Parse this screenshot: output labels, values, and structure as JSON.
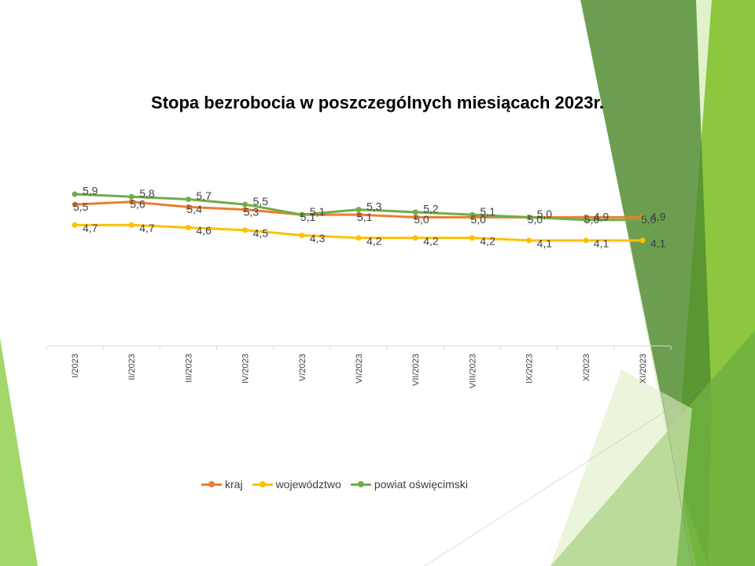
{
  "colors": {
    "kraj": "#ED7D31",
    "wojewodztwo": "#FFC000",
    "powiat": "#70AD47",
    "axis": "#D9D9D9",
    "label": "#404040"
  },
  "chart_data": {
    "type": "line",
    "title": "Stopa bezrobocia  w poszczególnych miesiącach 2023r.",
    "xlabel": "",
    "ylabel": "",
    "categories": [
      "I/2023",
      "II/2023",
      "III/2023",
      "IV/2023",
      "V/2023",
      "VI/2023",
      "VII/2023",
      "VIII/2023",
      "IX/2023",
      "X/2023",
      "XI/2023"
    ],
    "ylim": [
      0,
      7
    ],
    "grid": false,
    "legend_position": "bottom",
    "series": [
      {
        "name": "kraj",
        "color_key": "kraj",
        "values": [
          5.5,
          5.6,
          5.4,
          5.3,
          5.1,
          5.1,
          5.0,
          5.0,
          5.0,
          5.0,
          5.0
        ],
        "labels": [
          "5,5",
          "5,6",
          "5,4",
          "5,3",
          "5,1",
          "5,1",
          "5,0",
          "5,0",
          "5,0",
          "5,0",
          "5,0"
        ]
      },
      {
        "name": "województwo",
        "color_key": "wojewodztwo",
        "values": [
          4.7,
          4.7,
          4.6,
          4.5,
          4.3,
          4.2,
          4.2,
          4.2,
          4.1,
          4.1,
          4.1
        ],
        "labels": [
          "4,7",
          "4,7",
          "4,6",
          "4,5",
          "4,3",
          "4,2",
          "4,2",
          "4,2",
          "4,1",
          "4,1",
          "4,1"
        ]
      },
      {
        "name": "powiat oświęcimski",
        "color_key": "powiat",
        "values": [
          5.9,
          5.8,
          5.7,
          5.5,
          5.1,
          5.3,
          5.2,
          5.1,
          5.0,
          4.9,
          4.9
        ],
        "labels": [
          "5,9",
          "5,8",
          "5,7",
          "5,5",
          "5,1",
          "5,3",
          "5,2",
          "5,1",
          "5,0",
          "4,9",
          "4,9"
        ]
      }
    ]
  }
}
